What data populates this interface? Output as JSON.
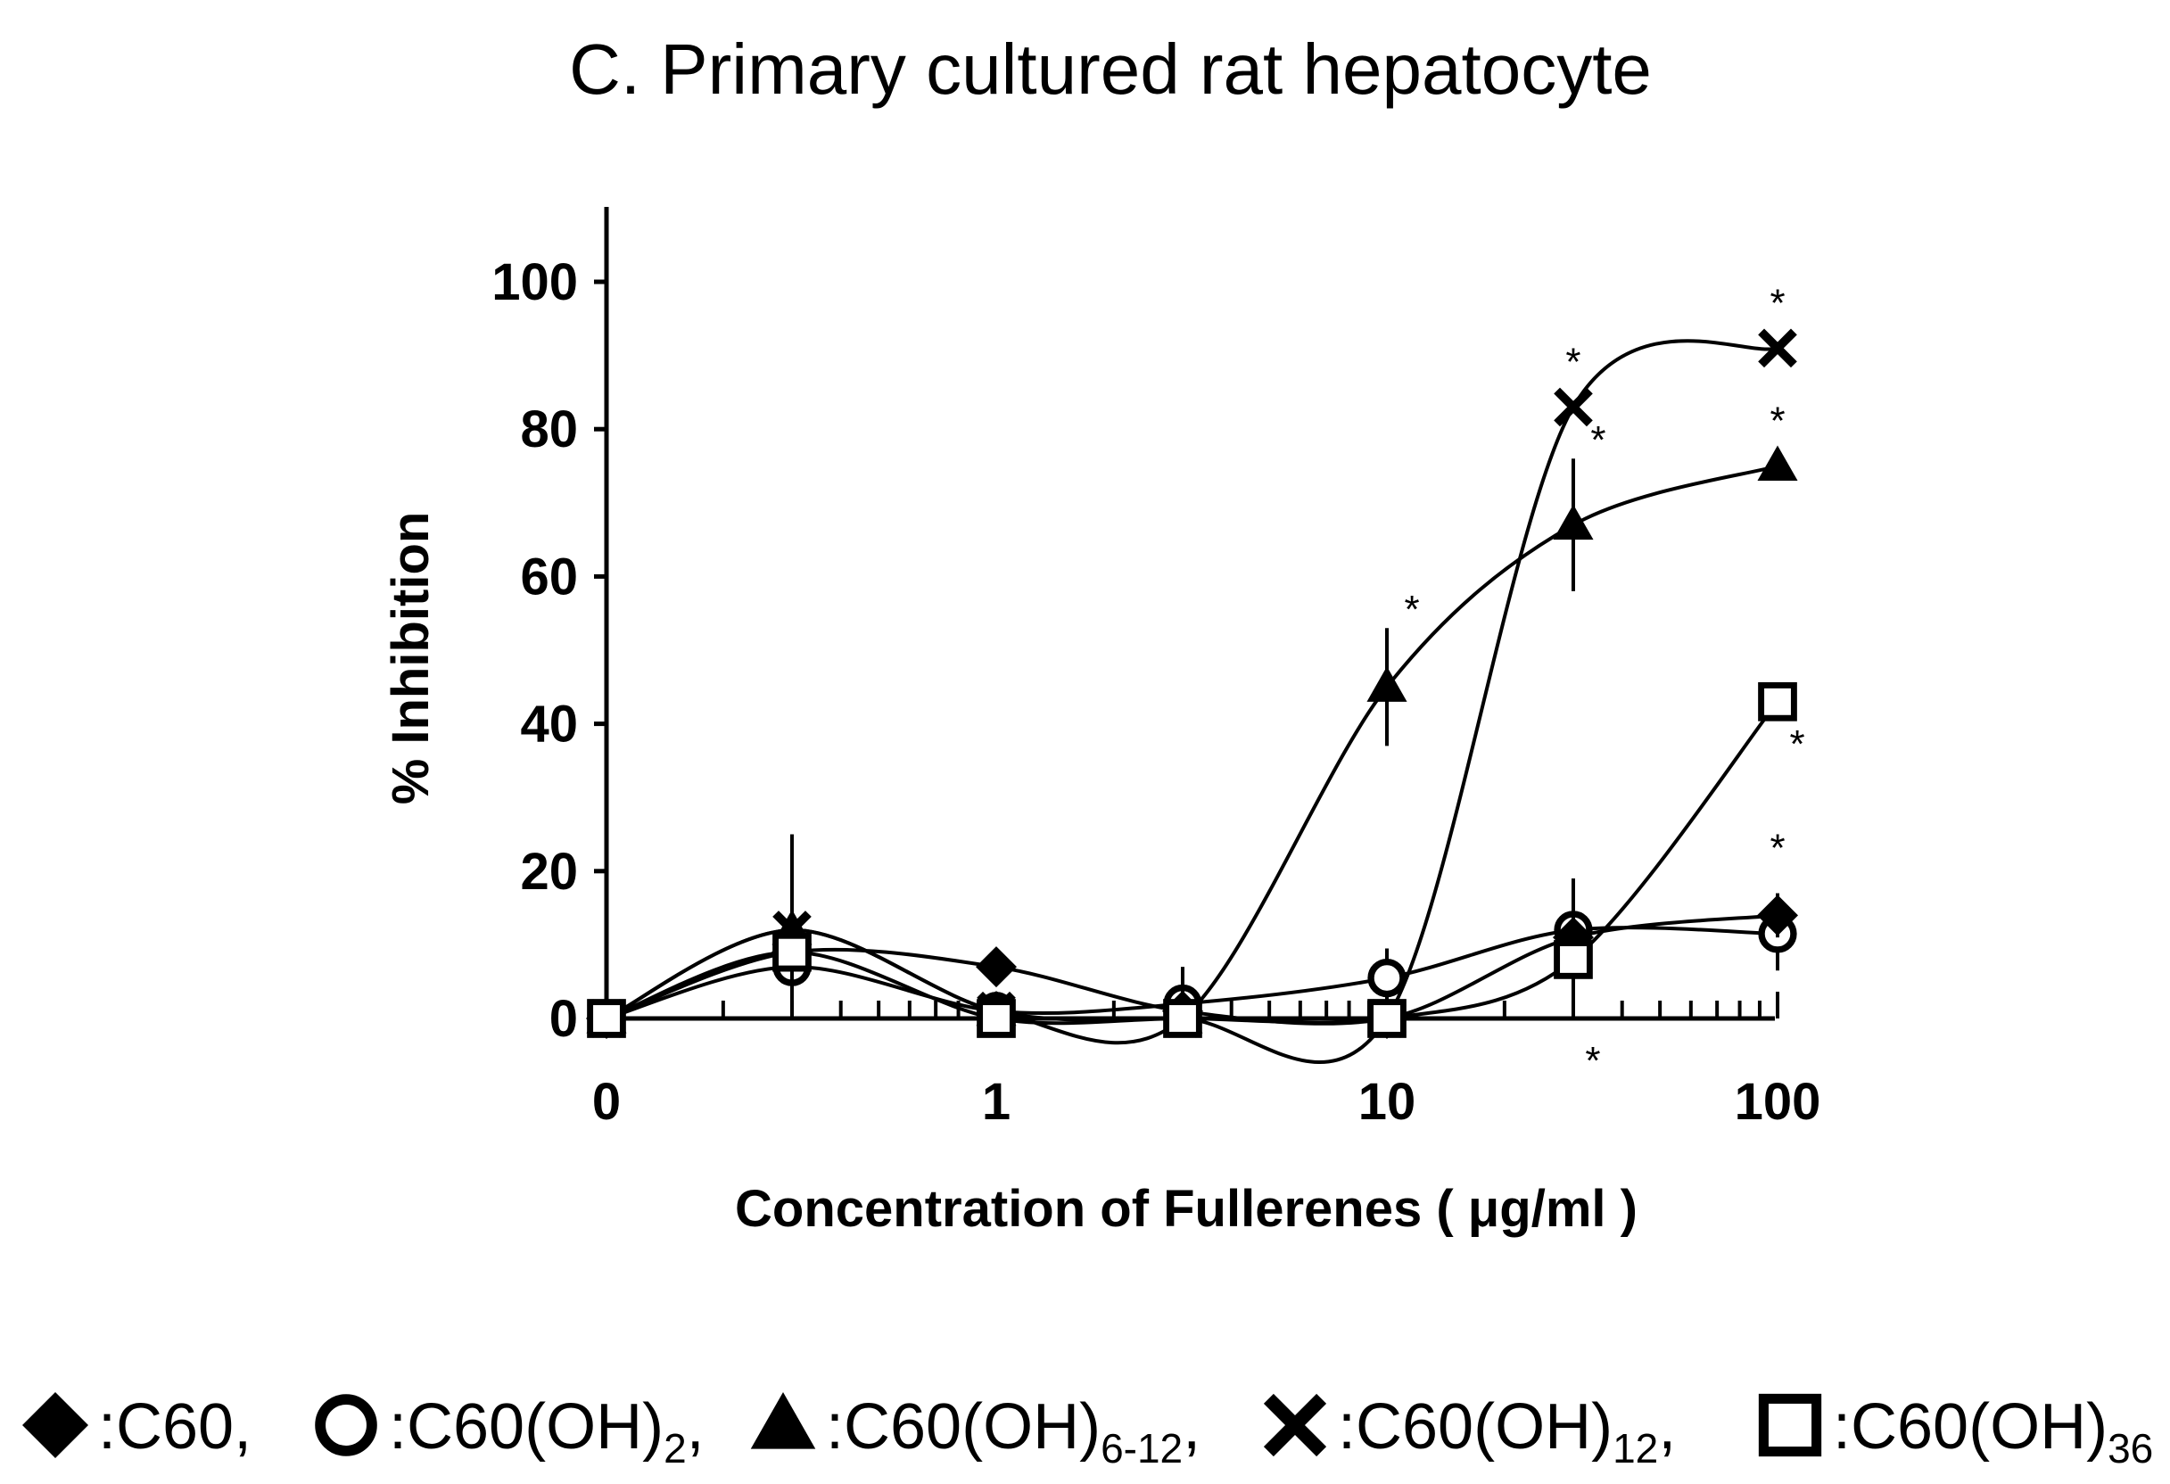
{
  "chart_data": {
    "type": "line",
    "title": "C. Primary cultured rat hepatocyte",
    "xlabel": "Concentration of Fullerenes ( μg/ml )",
    "ylabel": "% Inhibition",
    "x_scale": "log (0 plotted at left edge)",
    "x_ticks": [
      "0",
      "1",
      "10",
      "100"
    ],
    "y_ticks": [
      "0",
      "20",
      "40",
      "60",
      "80",
      "100"
    ],
    "ylim": [
      0,
      110
    ],
    "grid": false,
    "legend_position": "bottom",
    "x": [
      0,
      0.3,
      1,
      3,
      10,
      30,
      100
    ],
    "series": [
      {
        "name": "C60",
        "subscript": "",
        "prefix": ":",
        "suffix": ",",
        "marker": "diamond",
        "values": [
          0,
          9,
          7,
          1,
          0,
          11,
          14
        ],
        "errors": [
          null,
          null,
          null,
          null,
          null,
          null,
          3
        ],
        "significant": [
          false,
          false,
          false,
          false,
          false,
          false,
          true
        ],
        "star_position": [
          null,
          null,
          null,
          null,
          null,
          null,
          "above"
        ]
      },
      {
        "name": "C60(OH)",
        "subscript": "2",
        "prefix": ":",
        "suffix": ",",
        "marker": "circle",
        "values": [
          0,
          7,
          1,
          2,
          5.5,
          12,
          11.5
        ],
        "errors": [
          null,
          null,
          null,
          null,
          4,
          null,
          5
        ],
        "significant": [
          false,
          false,
          false,
          false,
          false,
          false,
          false
        ],
        "star_position": [
          null,
          null,
          null,
          null,
          null,
          null,
          null
        ]
      },
      {
        "name": "C60(OH)",
        "subscript": "6-12",
        "prefix": ":",
        "suffix": ",",
        "marker": "triangle",
        "values": [
          0,
          12,
          1,
          0,
          45,
          67,
          75
        ],
        "errors": [
          null,
          13,
          null,
          7,
          8,
          9,
          null
        ],
        "significant": [
          false,
          false,
          false,
          false,
          true,
          true,
          true
        ],
        "star_position": [
          null,
          null,
          null,
          null,
          "above",
          "above",
          "above"
        ]
      },
      {
        "name": "C60(OH)",
        "subscript": "12",
        "prefix": ":",
        "suffix": ",",
        "marker": "x",
        "values": [
          0,
          12,
          1,
          0,
          0,
          83,
          91
        ],
        "errors": [
          null,
          null,
          null,
          null,
          null,
          null,
          null
        ],
        "significant": [
          false,
          false,
          false,
          false,
          false,
          true,
          true
        ],
        "star_position": [
          null,
          null,
          null,
          null,
          null,
          "above",
          "above"
        ]
      },
      {
        "name": "C60(OH)",
        "subscript": "36",
        "prefix": ":",
        "suffix": "",
        "marker": "square",
        "values": [
          0,
          9,
          0,
          0,
          0,
          8,
          43
        ],
        "errors": [
          null,
          null,
          null,
          null,
          null,
          11,
          null
        ],
        "significant": [
          false,
          false,
          false,
          false,
          false,
          true,
          true
        ],
        "star_position": [
          null,
          null,
          null,
          null,
          null,
          "below",
          "below"
        ]
      }
    ],
    "significance_symbol": "*"
  }
}
